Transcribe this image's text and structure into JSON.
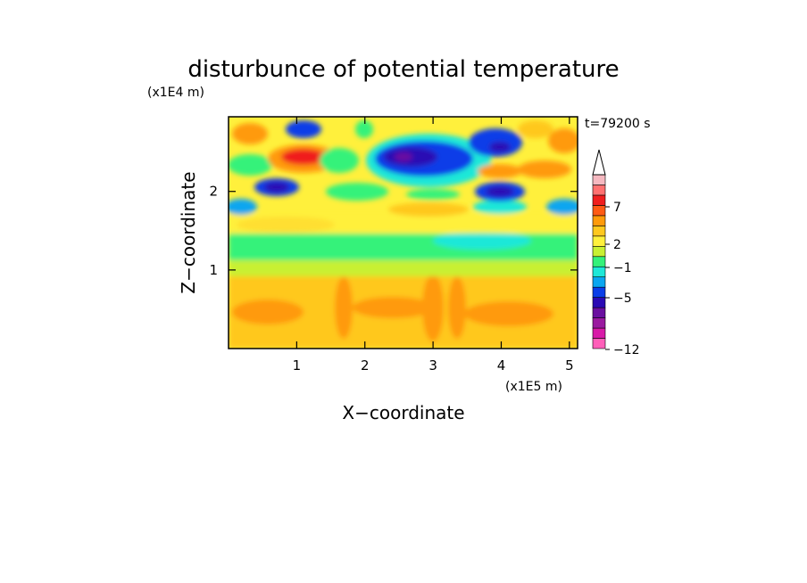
{
  "chart_data": {
    "type": "heatmap",
    "title": "disturbunce of potential temperature",
    "y_scale_label": "(x1E4 m)",
    "x_scale_label": "(x1E5 m)",
    "xlabel": "X−coordinate",
    "ylabel": "Z−coordinate",
    "time_label": "t=79200 s",
    "xlim": [
      0,
      5.12
    ],
    "ylim": [
      0,
      2.95
    ],
    "x_ticks": [
      1,
      2,
      3,
      4,
      5
    ],
    "x_tick_labels": [
      "1",
      "2",
      "3",
      "4",
      "5"
    ],
    "y_ticks": [
      1,
      2
    ],
    "y_tick_labels": [
      "1",
      "2"
    ],
    "colorbar": {
      "extend_top": true,
      "labels": [
        {
          "value": 7,
          "text": "7"
        },
        {
          "value": 2,
          "text": "2"
        },
        {
          "value": -1,
          "text": "−1"
        },
        {
          "value": -5,
          "text": "−5"
        },
        {
          "value": -12,
          "text": "−12"
        }
      ],
      "levels": [
        {
          "color": "#ff5fb9"
        },
        {
          "color": "#d81aa8"
        },
        {
          "color": "#9a1aa0"
        },
        {
          "color": "#6a10a0"
        },
        {
          "color": "#2a0ab4"
        },
        {
          "color": "#0a3ee8"
        },
        {
          "color": "#0aa6f0"
        },
        {
          "color": "#1ee8d8"
        },
        {
          "color": "#34f27a"
        },
        {
          "color": "#c8f032"
        },
        {
          "color": "#fff03c"
        },
        {
          "color": "#ffc81e"
        },
        {
          "color": "#ff9a0a"
        },
        {
          "color": "#ff5a14"
        },
        {
          "color": "#f01e1e"
        },
        {
          "color": "#ff7070"
        },
        {
          "color": "#f5b8c0"
        }
      ]
    }
  }
}
